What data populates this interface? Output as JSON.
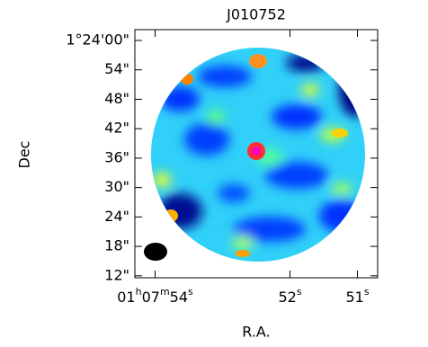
{
  "chart_data": {
    "type": "image",
    "title": "J010752",
    "xlabel": "R.A.",
    "ylabel": "Dec",
    "xlim": [
      54.3,
      50.7
    ],
    "xticks": [
      {
        "value": 54,
        "label": "01h07m54s"
      },
      {
        "value": 52,
        "label": "52s"
      },
      {
        "value": 51,
        "label": "51s"
      }
    ],
    "ylim": [
      11.6,
      62.2
    ],
    "yticks": [
      {
        "value": 60,
        "label": "1°24'00\""
      },
      {
        "value": 54,
        "label": "54\""
      },
      {
        "value": 48,
        "label": "48\""
      },
      {
        "value": 42,
        "label": "42\""
      },
      {
        "value": 36,
        "label": "36\""
      },
      {
        "value": 30,
        "label": "30\""
      },
      {
        "value": 24,
        "label": "24\""
      },
      {
        "value": 18,
        "label": "18\""
      },
      {
        "value": 12,
        "label": "12\""
      }
    ]
  }
}
